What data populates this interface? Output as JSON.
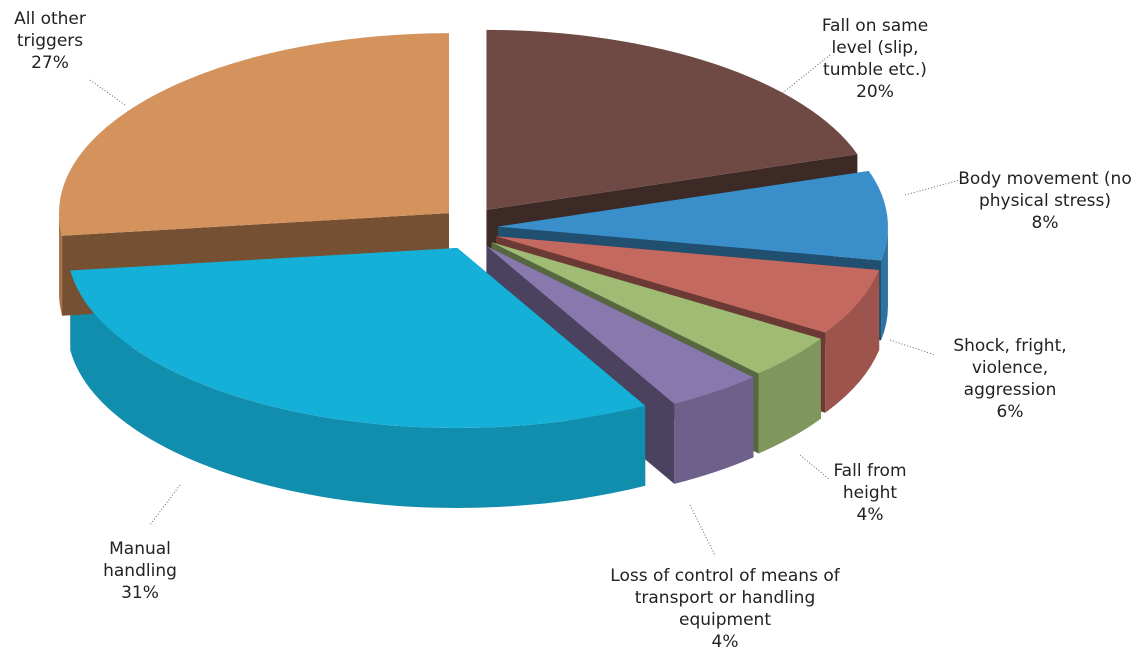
{
  "chart_data": {
    "type": "pie3d",
    "categories": [
      "Fall on same level (slip, tumble etc.)",
      "Body movement (no physical stress)",
      "Shock, fright, violence, aggression",
      "Fall from height",
      "Loss of control of means of transport or handling equipment",
      "Manual handling",
      "All other triggers"
    ],
    "values": [
      20,
      8,
      6,
      4,
      4,
      31,
      27
    ],
    "value_labels": [
      "20%",
      "8%",
      "6%",
      "4%",
      "4%",
      "31%",
      "27%"
    ],
    "colors": [
      "#6f4a44",
      "#3a8fcb",
      "#c4695f",
      "#9fbb74",
      "#8878ad",
      "#15b0d8",
      "#d4925c"
    ]
  }
}
